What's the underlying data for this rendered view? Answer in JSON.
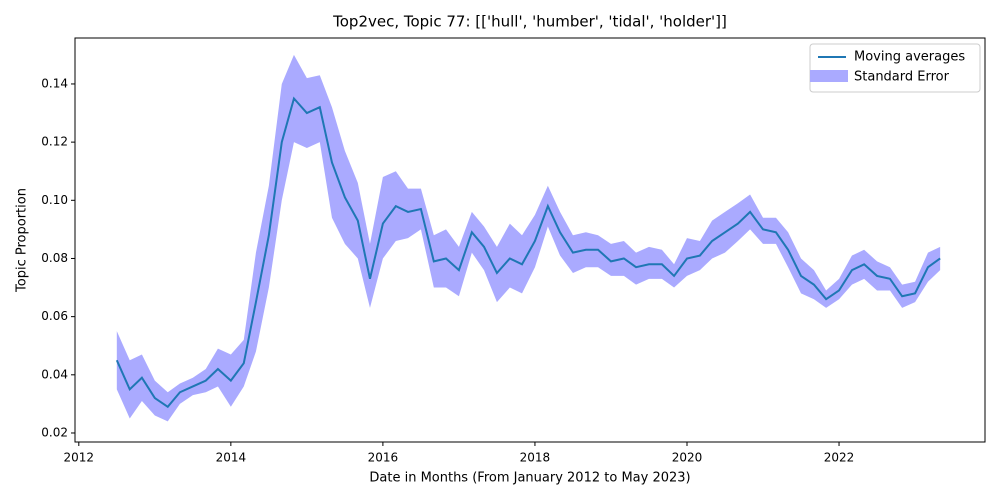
{
  "chart_data": {
    "type": "line",
    "title": "Top2vec, Topic 77: [['hull', 'humber', 'tidal', 'holder']]",
    "x_label": "Date in Months (From January 2012 to May 2023)",
    "y_label": "Topic Proportion",
    "x": [
      2012.5,
      2012.67,
      2012.83,
      2013.0,
      2013.17,
      2013.33,
      2013.5,
      2013.67,
      2013.83,
      2014.0,
      2014.17,
      2014.33,
      2014.5,
      2014.67,
      2014.83,
      2015.0,
      2015.17,
      2015.33,
      2015.5,
      2015.67,
      2015.83,
      2016.0,
      2016.17,
      2016.33,
      2016.5,
      2016.67,
      2016.83,
      2017.0,
      2017.17,
      2017.33,
      2017.5,
      2017.67,
      2017.83,
      2018.0,
      2018.17,
      2018.33,
      2018.5,
      2018.67,
      2018.83,
      2019.0,
      2019.17,
      2019.33,
      2019.5,
      2019.67,
      2019.83,
      2020.0,
      2020.17,
      2020.33,
      2020.5,
      2020.67,
      2020.83,
      2021.0,
      2021.17,
      2021.33,
      2021.5,
      2021.67,
      2021.83,
      2022.0,
      2022.17,
      2022.33,
      2022.5,
      2022.67,
      2022.83,
      2023.0,
      2023.17,
      2023.33
    ],
    "series": [
      {
        "name": "Moving averages",
        "color": "#1f77b4",
        "values": [
          0.045,
          0.035,
          0.039,
          0.032,
          0.029,
          0.034,
          0.036,
          0.038,
          0.042,
          0.038,
          0.044,
          0.065,
          0.088,
          0.12,
          0.135,
          0.13,
          0.132,
          0.113,
          0.101,
          0.093,
          0.073,
          0.092,
          0.098,
          0.096,
          0.097,
          0.079,
          0.08,
          0.076,
          0.089,
          0.084,
          0.075,
          0.08,
          0.078,
          0.086,
          0.098,
          0.089,
          0.082,
          0.083,
          0.083,
          0.079,
          0.08,
          0.077,
          0.078,
          0.078,
          0.074,
          0.08,
          0.081,
          0.086,
          0.089,
          0.092,
          0.096,
          0.09,
          0.089,
          0.083,
          0.074,
          0.071,
          0.066,
          0.069,
          0.076,
          0.078,
          0.074,
          0.073,
          0.067,
          0.068,
          0.077,
          0.08
        ]
      },
      {
        "name": "Standard Error",
        "color": "#aaaaff",
        "lower": [
          0.035,
          0.025,
          0.031,
          0.026,
          0.024,
          0.03,
          0.033,
          0.034,
          0.036,
          0.029,
          0.036,
          0.048,
          0.07,
          0.1,
          0.12,
          0.118,
          0.12,
          0.094,
          0.085,
          0.08,
          0.063,
          0.08,
          0.086,
          0.087,
          0.09,
          0.07,
          0.07,
          0.067,
          0.082,
          0.076,
          0.065,
          0.07,
          0.068,
          0.077,
          0.091,
          0.081,
          0.075,
          0.077,
          0.077,
          0.074,
          0.074,
          0.071,
          0.073,
          0.073,
          0.07,
          0.074,
          0.076,
          0.08,
          0.082,
          0.086,
          0.09,
          0.085,
          0.085,
          0.077,
          0.068,
          0.066,
          0.063,
          0.066,
          0.071,
          0.073,
          0.069,
          0.069,
          0.063,
          0.065,
          0.072,
          0.076
        ],
        "upper": [
          0.055,
          0.045,
          0.047,
          0.038,
          0.034,
          0.037,
          0.039,
          0.042,
          0.049,
          0.047,
          0.052,
          0.082,
          0.105,
          0.14,
          0.15,
          0.142,
          0.143,
          0.132,
          0.117,
          0.106,
          0.085,
          0.108,
          0.11,
          0.104,
          0.104,
          0.088,
          0.09,
          0.084,
          0.096,
          0.091,
          0.084,
          0.092,
          0.088,
          0.095,
          0.105,
          0.096,
          0.088,
          0.089,
          0.088,
          0.085,
          0.086,
          0.082,
          0.084,
          0.083,
          0.078,
          0.087,
          0.086,
          0.093,
          0.096,
          0.099,
          0.102,
          0.094,
          0.094,
          0.089,
          0.08,
          0.076,
          0.069,
          0.073,
          0.081,
          0.083,
          0.079,
          0.077,
          0.071,
          0.072,
          0.082,
          0.084
        ]
      }
    ],
    "xlim": [
      2011.95,
      2023.92
    ],
    "xticks": [
      2012,
      2014,
      2016,
      2018,
      2020,
      2022
    ],
    "ylim": [
      0.0169,
      0.1558
    ],
    "yticks": [
      0.02,
      0.04,
      0.06,
      0.08,
      {
        "value": 0.1,
        "label": "0.10"
      },
      0.12,
      0.14
    ],
    "legend": "upper right"
  }
}
